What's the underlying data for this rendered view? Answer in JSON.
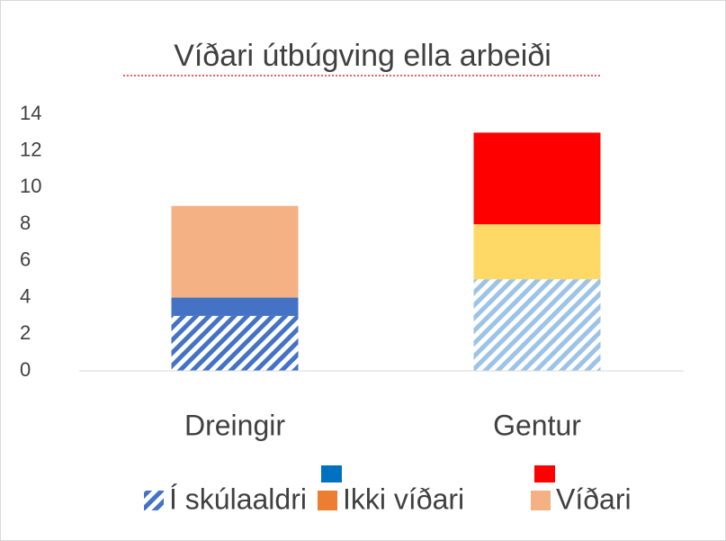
{
  "chart_data": {
    "type": "stacked_bar",
    "title": "Víðari útbúgving ella arbeiði",
    "categories": [
      "Dreingir",
      "Gentur"
    ],
    "series": [
      {
        "name": "Í skúlaaldri",
        "color": "#4472c4",
        "colors": [
          "#4472c4",
          "#9dc3e6"
        ],
        "hatch": true,
        "values": [
          3,
          5
        ]
      },
      {
        "name": "Ikki víðari",
        "color": "#ed7d31",
        "colors": [
          "#4472c4",
          "#ffd966"
        ],
        "hatch": false,
        "values": [
          1,
          3
        ]
      },
      {
        "name": "Víðari",
        "color": "#f4b183",
        "colors": [
          "#f4b183",
          "#ff0000"
        ],
        "hatch": false,
        "values": [
          5,
          5
        ]
      }
    ],
    "ylim": [
      0,
      14
    ],
    "yticks": [
      0,
      2,
      4,
      6,
      8,
      10,
      12,
      14
    ],
    "grid": false,
    "legend": "bottom"
  }
}
